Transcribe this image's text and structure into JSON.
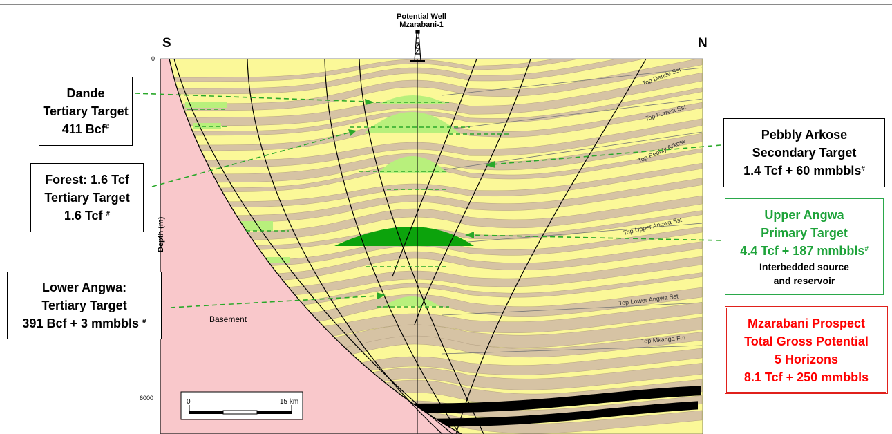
{
  "section": {
    "south_label": "S",
    "north_label": "N",
    "well_label_line1": "Potential Well",
    "well_label_line2": "Mzarabani-1",
    "depth_axis_label": "Depth (m)",
    "depth_tick_top": "0",
    "depth_tick_bottom": "6000",
    "basement_label": "Basement",
    "scale_start": "0",
    "scale_end": "15 km",
    "horizons": [
      "Top Dande Sst",
      "Top Forrest Sst",
      "Top Pebbly Arkose",
      "Top Upper Angwa Sst",
      "Top Lower Angwa Sst",
      "Top Mkanga Fm"
    ]
  },
  "callouts": {
    "dande": {
      "line1": "Dande",
      "line2": "Tertiary Target",
      "line3": "411 Bcf",
      "mark": "#"
    },
    "forest": {
      "line1": "Forest: 1.6 Tcf",
      "line2": "Tertiary Target",
      "line3": "1.6 Tcf ",
      "mark": "#"
    },
    "lower_angwa": {
      "line1": "Lower Angwa:",
      "line2": "Tertiary Target",
      "line3": "391 Bcf + 3 mmbbls ",
      "mark": "#"
    },
    "pebbly": {
      "line1": "Pebbly Arkose",
      "line2": "Secondary Target",
      "line3": "1.4 Tcf + 60 mmbbls",
      "mark": "#"
    },
    "upper_angwa": {
      "line1": "Upper Angwa",
      "line2": "Primary Target",
      "line3": "4.4 Tcf + 187 mmbbls",
      "mark": "#",
      "line4": "Interbedded source",
      "line5": "and reservoir"
    },
    "total": {
      "line1": "Mzarabani Prospect",
      "line2": "Total Gross Potential",
      "line3": "5 Horizons",
      "line4": "8.1 Tcf + 250 mmbbls"
    }
  },
  "colors": {
    "sandstone": "#fbf898",
    "shale": "#d6c3a4",
    "basement": "#f9c8cb",
    "gas": "#b8f07c",
    "primary_gas": "#0ca30c",
    "callout_line": "#2aa82a",
    "total_red": "#ff0000"
  }
}
